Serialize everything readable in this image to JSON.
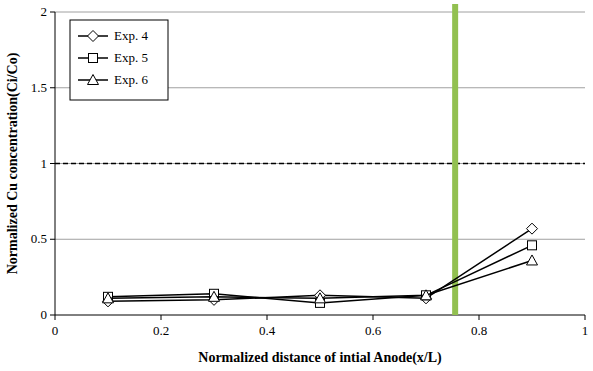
{
  "chart_data": {
    "type": "line",
    "x_label": "Normalized distance of intial Anode(x/L)",
    "y_label": "Normalized Cu concentration(Ci/Co)",
    "x": [
      0.1,
      0.3,
      0.5,
      0.7,
      0.9
    ],
    "series": [
      {
        "name": "Exp. 4",
        "color": "#000000",
        "marker": "diamond",
        "values": [
          0.09,
          0.1,
          0.13,
          0.11,
          0.57
        ]
      },
      {
        "name": "Exp. 5",
        "color": "#000000",
        "marker": "square",
        "values": [
          0.12,
          0.14,
          0.08,
          0.13,
          0.46
        ]
      },
      {
        "name": "Exp. 6",
        "color": "#000000",
        "marker": "triangle",
        "values": [
          0.11,
          0.12,
          0.11,
          0.13,
          0.36
        ]
      }
    ],
    "xlim": [
      0,
      1
    ],
    "xticks": [
      0,
      0.2,
      0.4,
      0.6,
      0.8,
      1
    ],
    "ylim": [
      0,
      2
    ],
    "yticks": [
      0,
      0.5,
      1,
      1.5,
      2
    ],
    "grid": true,
    "legend": "top-left",
    "annotations": [
      {
        "type": "hline",
        "y": 1,
        "line_style": "dashed",
        "color": "#000000"
      },
      {
        "type": "vline",
        "x": 0.755,
        "line_style": "solid",
        "color": "#92c050"
      }
    ]
  }
}
